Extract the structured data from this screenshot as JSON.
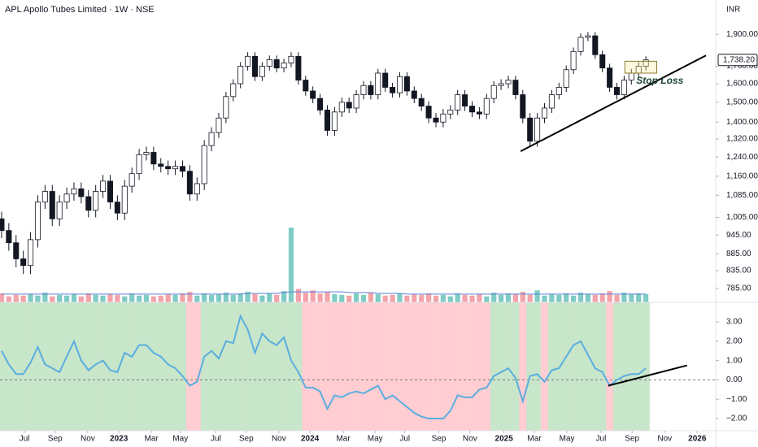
{
  "chart_data": [
    {
      "type": "candlestick",
      "title": "APL Apollo Tubes Limited · 1W · NSE",
      "currency": "INR",
      "log_scale": true,
      "ylim": [
        752,
        2141
      ],
      "xlim": [
        -0.22,
        98.65
      ],
      "up_color": "#ffffff",
      "down_color": "#131722",
      "yticks": [
        {
          "value": 785,
          "label": "785.00"
        },
        {
          "value": 835,
          "label": "835.00"
        },
        {
          "value": 885,
          "label": "885.00"
        },
        {
          "value": 945,
          "label": "945.00"
        },
        {
          "value": 1005,
          "label": "1,005.00"
        },
        {
          "value": 1085,
          "label": "1,085.00"
        },
        {
          "value": 1160,
          "label": "1,160.00"
        },
        {
          "value": 1240,
          "label": "1,240.00"
        },
        {
          "value": 1320,
          "label": "1,320.00"
        },
        {
          "value": 1400,
          "label": "1,400.00"
        },
        {
          "value": 1500,
          "label": "1,500.00"
        },
        {
          "value": 1600,
          "label": "1,600.00"
        },
        {
          "value": 1700,
          "label": "1,700.00"
        },
        {
          "value": 1900,
          "label": "1,900.00"
        }
      ],
      "last_price": {
        "value": 1738.2,
        "label": "1,738.20"
      },
      "open": [
        1000,
        960,
        920,
        870,
        850,
        930,
        1060,
        1100,
        1000,
        1060,
        1090,
        1110,
        1080,
        1030,
        1100,
        1140,
        1060,
        1020,
        1120,
        1170,
        1250,
        1260,
        1210,
        1200,
        1190,
        1200,
        1180,
        1090,
        1130,
        1290,
        1350,
        1420,
        1530,
        1600,
        1700,
        1760,
        1640,
        1700,
        1740,
        1690,
        1720,
        1760,
        1620,
        1560,
        1520,
        1460,
        1360,
        1450,
        1500,
        1470,
        1540,
        1590,
        1540,
        1660,
        1580,
        1550,
        1640,
        1560,
        1520,
        1480,
        1420,
        1400,
        1440,
        1460,
        1540,
        1480,
        1450,
        1440,
        1520,
        1590,
        1600,
        1620,
        1540,
        1420,
        1310,
        1420,
        1470,
        1540,
        1580,
        1680,
        1790,
        1880,
        1890,
        1770,
        1690,
        1580,
        1540,
        1620,
        1660,
        1700
      ],
      "high": [
        1025,
        985,
        945,
        895,
        955,
        1085,
        1125,
        1125,
        1085,
        1115,
        1135,
        1135,
        1105,
        1125,
        1165,
        1165,
        1085,
        1145,
        1195,
        1275,
        1285,
        1285,
        1235,
        1225,
        1225,
        1225,
        1205,
        1155,
        1315,
        1375,
        1445,
        1555,
        1625,
        1725,
        1785,
        1785,
        1725,
        1765,
        1765,
        1745,
        1785,
        1785,
        1645,
        1585,
        1545,
        1485,
        1475,
        1525,
        1525,
        1565,
        1615,
        1615,
        1685,
        1685,
        1605,
        1665,
        1665,
        1585,
        1545,
        1505,
        1445,
        1465,
        1485,
        1565,
        1565,
        1505,
        1475,
        1545,
        1615,
        1625,
        1645,
        1645,
        1565,
        1445,
        1445,
        1495,
        1565,
        1605,
        1705,
        1815,
        1905,
        1915,
        1915,
        1795,
        1715,
        1605,
        1645,
        1685,
        1725,
        1760
      ],
      "low": [
        935,
        895,
        845,
        825,
        825,
        905,
        1035,
        975,
        975,
        1035,
        1065,
        1055,
        1005,
        1005,
        1075,
        1035,
        995,
        995,
        1095,
        1145,
        1225,
        1185,
        1175,
        1165,
        1165,
        1155,
        1065,
        1065,
        1105,
        1265,
        1325,
        1395,
        1505,
        1575,
        1675,
        1615,
        1615,
        1675,
        1665,
        1665,
        1695,
        1595,
        1535,
        1495,
        1435,
        1335,
        1335,
        1425,
        1445,
        1445,
        1515,
        1515,
        1515,
        1555,
        1525,
        1525,
        1535,
        1495,
        1455,
        1395,
        1375,
        1375,
        1415,
        1435,
        1455,
        1425,
        1415,
        1415,
        1495,
        1565,
        1575,
        1515,
        1395,
        1285,
        1285,
        1395,
        1445,
        1515,
        1555,
        1655,
        1765,
        1855,
        1745,
        1665,
        1555,
        1515,
        1515,
        1595,
        1635,
        1675
      ],
      "close": [
        960,
        920,
        870,
        850,
        930,
        1060,
        1100,
        1000,
        1060,
        1090,
        1110,
        1080,
        1030,
        1100,
        1140,
        1060,
        1020,
        1120,
        1170,
        1250,
        1260,
        1210,
        1200,
        1190,
        1200,
        1180,
        1090,
        1130,
        1290,
        1350,
        1420,
        1530,
        1600,
        1700,
        1760,
        1640,
        1700,
        1740,
        1690,
        1720,
        1760,
        1620,
        1560,
        1520,
        1460,
        1360,
        1450,
        1500,
        1470,
        1540,
        1590,
        1540,
        1660,
        1580,
        1550,
        1640,
        1560,
        1520,
        1480,
        1420,
        1400,
        1440,
        1460,
        1540,
        1480,
        1450,
        1440,
        1520,
        1590,
        1600,
        1620,
        1540,
        1420,
        1310,
        1420,
        1470,
        1540,
        1580,
        1680,
        1790,
        1880,
        1890,
        1770,
        1690,
        1580,
        1540,
        1620,
        1660,
        1700,
        1738.2
      ],
      "volume_lim": [
        0,
        100
      ],
      "volume_up_color": "#7fccc4",
      "volume_down_color": "#f4a3a8",
      "volume_ma_color": "#5b7fd6",
      "volume": [
        12,
        8,
        10,
        9,
        11,
        9,
        13,
        8,
        10,
        9,
        11,
        8,
        12,
        10,
        9,
        11,
        10,
        8,
        12,
        9,
        10,
        8,
        9,
        11,
        10,
        12,
        14,
        9,
        12,
        10,
        11,
        13,
        10,
        12,
        14,
        11,
        9,
        12,
        10,
        15,
        100,
        18,
        13,
        16,
        12,
        14,
        11,
        10,
        9,
        12,
        10,
        13,
        11,
        9,
        10,
        12,
        9,
        11,
        10,
        12,
        9,
        10,
        8,
        12,
        10,
        9,
        11,
        8,
        13,
        10,
        12,
        11,
        14,
        10,
        16,
        9,
        11,
        10,
        12,
        9,
        13,
        11,
        10,
        12,
        15,
        10,
        13,
        11,
        12,
        11
      ],
      "volume_ma": [
        11,
        11,
        11,
        11,
        11,
        11,
        11,
        11,
        11,
        11,
        11,
        11,
        11,
        11,
        11,
        11,
        11,
        11,
        11,
        11,
        11,
        11,
        11,
        11,
        11,
        11,
        11,
        11,
        11,
        11,
        11,
        11,
        11,
        11,
        12,
        12,
        12,
        12,
        12,
        13,
        14,
        14,
        14,
        14,
        14,
        14,
        14,
        14,
        13,
        13,
        13,
        13,
        12,
        12,
        12,
        12,
        11,
        11,
        11,
        11,
        11,
        11,
        11,
        11,
        11,
        11,
        11,
        11,
        11,
        11,
        11,
        11,
        11,
        11,
        11,
        11,
        11,
        11,
        11,
        11,
        11,
        11,
        11,
        11,
        11,
        11,
        11,
        11,
        11,
        11
      ],
      "trendline": {
        "x": [
          71.7,
          97.3
        ],
        "y": [
          1265,
          1765
        ]
      },
      "stop_loss": {
        "label": "Stop Loss",
        "start": 86.1,
        "end": 90.5,
        "top": 1730,
        "bottom": 1660
      }
    },
    {
      "type": "line",
      "ylim": [
        -2.63,
        4.01
      ],
      "xlim": [
        -0.22,
        98.65
      ],
      "color": "#5aaee0",
      "positive_fill": "#c8e6c9",
      "negative_fill": "#ffcdd2",
      "yticks": [
        {
          "value": 3,
          "label": "3.00"
        },
        {
          "value": 2,
          "label": "2.00"
        },
        {
          "value": 1,
          "label": "1.00"
        },
        {
          "value": 0,
          "label": "0.00"
        },
        {
          "value": -1,
          "label": "−1.00"
        },
        {
          "value": -2,
          "label": "−2.00"
        }
      ],
      "values": [
        1.5,
        0.8,
        0.3,
        0.3,
        0.9,
        1.7,
        0.8,
        0.6,
        0.4,
        1.2,
        2.0,
        1.0,
        0.5,
        0.8,
        1.0,
        0.5,
        0.4,
        1.4,
        1.2,
        1.8,
        1.8,
        1.4,
        1.2,
        0.8,
        0.6,
        0.2,
        -0.3,
        -0.1,
        1.2,
        1.5,
        1.1,
        2.0,
        1.9,
        3.3,
        2.6,
        1.4,
        2.4,
        2.0,
        1.8,
        2.2,
        1.0,
        0.4,
        -0.4,
        -0.4,
        -0.6,
        -1.5,
        -0.8,
        -0.9,
        -0.7,
        -0.6,
        -0.7,
        -0.5,
        -0.3,
        -1.0,
        -0.8,
        -1.1,
        -1.4,
        -1.7,
        -1.9,
        -2.0,
        -2.0,
        -2.0,
        -1.6,
        -0.8,
        -0.9,
        -0.9,
        -0.5,
        -0.4,
        0.2,
        0.4,
        0.6,
        0.1,
        -1.1,
        0.2,
        0.3,
        -0.1,
        0.5,
        0.6,
        1.2,
        1.8,
        2.0,
        1.3,
        0.6,
        0.4,
        -0.3,
        0.0,
        0.2,
        0.3,
        0.3,
        0.6
      ],
      "trendline": {
        "x": [
          83.8,
          94.7
        ],
        "y": [
          -0.3,
          0.75
        ]
      },
      "xticks": [
        {
          "value": 3.15,
          "label": "Jul"
        },
        {
          "value": 7.4,
          "label": "Sep"
        },
        {
          "value": 11.9,
          "label": "Nov"
        },
        {
          "value": 16.2,
          "label": "2023"
        },
        {
          "value": 20.7,
          "label": "Mar"
        },
        {
          "value": 24.7,
          "label": "May"
        },
        {
          "value": 29.6,
          "label": "Jul"
        },
        {
          "value": 33.8,
          "label": "Sep"
        },
        {
          "value": 38.3,
          "label": "Nov"
        },
        {
          "value": 42.6,
          "label": "2024"
        },
        {
          "value": 47.2,
          "label": "Mar"
        },
        {
          "value": 51.6,
          "label": "May"
        },
        {
          "value": 55.7,
          "label": "Jul"
        },
        {
          "value": 60.4,
          "label": "Sep"
        },
        {
          "value": 64.7,
          "label": "Nov"
        },
        {
          "value": 69.4,
          "label": "2025"
        },
        {
          "value": 73.6,
          "label": "Mar"
        },
        {
          "value": 78.1,
          "label": "May"
        },
        {
          "value": 82.8,
          "label": "Jul"
        },
        {
          "value": 87.1,
          "label": "Sep"
        },
        {
          "value": 91.6,
          "label": "Nov"
        },
        {
          "value": 96.1,
          "label": "2026"
        }
      ]
    }
  ]
}
